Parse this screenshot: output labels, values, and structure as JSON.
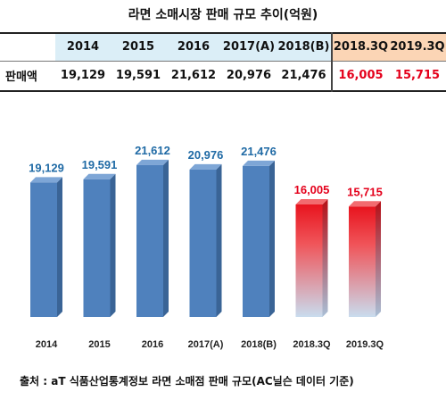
{
  "title": "라면 소매시장 판매 규모 추이(억원)",
  "table": {
    "row_label": "판매액",
    "headers": [
      "2014",
      "2015",
      "2016",
      "2017(A)",
      "2018(B)",
      "2018.3Q",
      "2019.3Q"
    ],
    "values": [
      "19,129",
      "19,591",
      "21,612",
      "20,976",
      "21,476",
      "16,005",
      "15,715"
    ]
  },
  "chart_data": {
    "type": "bar",
    "categories": [
      "2014",
      "2015",
      "2016",
      "2017(A)",
      "2018(B)",
      "2018.3Q",
      "2019.3Q"
    ],
    "values": [
      19129,
      19591,
      21612,
      20976,
      21476,
      16005,
      15715
    ],
    "value_labels": [
      "19,129",
      "19,591",
      "21,612",
      "20,976",
      "21,476",
      "16,005",
      "15,715"
    ],
    "ylim": [
      0,
      23500
    ],
    "grid": false,
    "legend": "none",
    "colors": {
      "annual_bar": "#4f81bd",
      "quarter_bar_top": "#e8141e",
      "quarter_bar_bottom": "#c9dcee",
      "annual_label": "#1f6aa5",
      "quarter_label": "#e4001b"
    }
  },
  "footer": {
    "source": "출처 : aT 식품산업통계정보 라면 소매점 판매 규모(AC닐슨 데이터 기준)"
  }
}
